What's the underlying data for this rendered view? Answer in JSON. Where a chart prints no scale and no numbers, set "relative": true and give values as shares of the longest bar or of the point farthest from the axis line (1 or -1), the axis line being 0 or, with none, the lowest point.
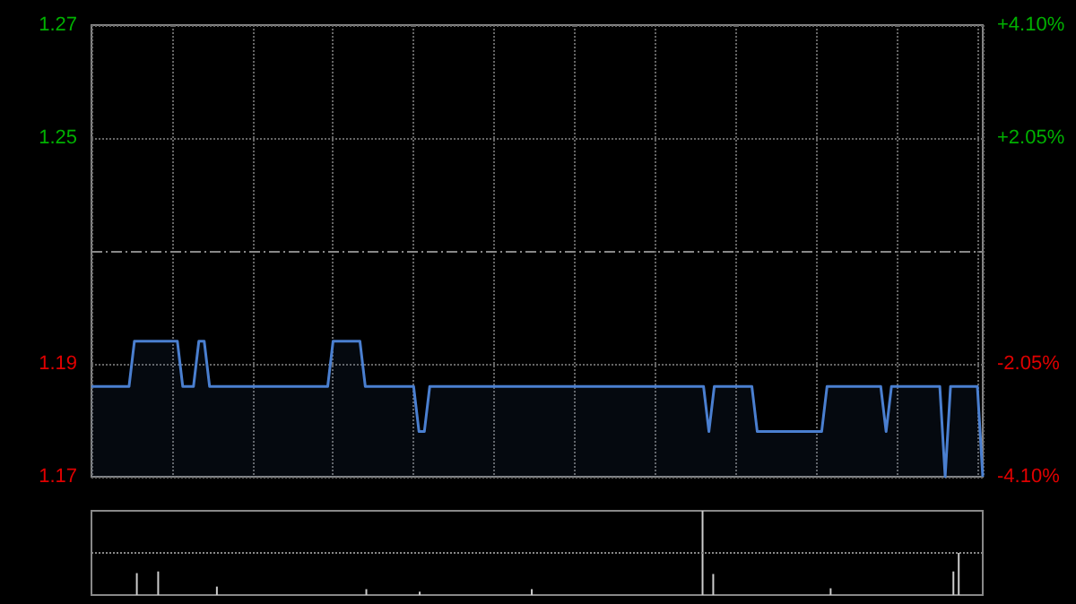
{
  "chart_data": [
    {
      "type": "area",
      "categories": [
        null,
        null,
        null,
        null,
        null,
        null,
        null,
        null,
        null,
        null,
        null,
        null,
        null,
        null,
        null,
        null,
        null,
        null,
        null,
        null,
        null,
        null,
        null,
        null,
        null,
        null,
        null,
        null,
        null,
        null,
        null,
        null,
        null,
        null,
        null,
        null,
        null,
        null,
        null,
        null,
        null,
        null,
        null,
        null,
        null,
        null,
        null,
        null,
        null,
        null,
        null,
        null,
        null,
        null,
        null,
        null,
        null,
        null,
        null,
        null,
        null,
        null,
        null,
        null,
        null,
        null,
        null,
        null,
        null,
        null,
        null,
        null,
        null,
        null,
        null,
        null,
        null,
        null,
        null,
        null,
        null,
        null,
        null,
        null,
        null,
        null,
        null,
        null,
        null,
        null,
        null,
        null,
        null,
        null,
        null,
        null,
        null,
        null,
        null,
        null,
        null,
        null,
        null,
        null,
        null,
        null,
        null,
        null,
        null,
        null,
        null,
        null,
        null,
        null,
        null,
        null,
        null,
        null,
        null,
        null,
        null,
        null,
        null,
        null,
        null,
        null,
        null,
        null,
        null,
        null,
        null,
        null,
        null,
        null,
        null,
        null,
        null,
        null,
        null,
        null,
        null,
        null,
        null,
        null,
        null,
        null,
        null,
        null,
        null,
        null,
        null,
        null,
        null,
        null,
        null,
        null,
        null,
        null,
        null,
        null,
        null,
        null,
        null,
        null,
        null,
        null,
        null
      ],
      "series": [
        {
          "color": "#4a7fd0",
          "values": [
            1.19,
            1.19,
            1.19,
            1.19,
            1.19,
            1.19,
            1.19,
            1.19,
            1.2,
            1.2,
            1.2,
            1.2,
            1.2,
            1.2,
            1.2,
            1.2,
            1.2,
            1.19,
            1.19,
            1.19,
            1.2,
            1.2,
            1.19,
            1.19,
            1.19,
            1.19,
            1.19,
            1.19,
            1.19,
            1.19,
            1.19,
            1.19,
            1.19,
            1.19,
            1.19,
            1.19,
            1.19,
            1.19,
            1.19,
            1.19,
            1.19,
            1.19,
            1.19,
            1.19,
            1.19,
            1.2,
            1.2,
            1.2,
            1.2,
            1.2,
            1.2,
            1.19,
            1.19,
            1.19,
            1.19,
            1.19,
            1.19,
            1.19,
            1.19,
            1.19,
            1.19,
            1.18,
            1.18,
            1.19,
            1.19,
            1.19,
            1.19,
            1.19,
            1.19,
            1.19,
            1.19,
            1.19,
            1.19,
            1.19,
            1.19,
            1.19,
            1.19,
            1.19,
            1.19,
            1.19,
            1.19,
            1.19,
            1.19,
            1.19,
            1.19,
            1.19,
            1.19,
            1.19,
            1.19,
            1.19,
            1.19,
            1.19,
            1.19,
            1.19,
            1.19,
            1.19,
            1.19,
            1.19,
            1.19,
            1.19,
            1.19,
            1.19,
            1.19,
            1.19,
            1.19,
            1.19,
            1.19,
            1.19,
            1.19,
            1.19,
            1.19,
            1.19,
            1.19,
            1.19,
            1.19,
            1.18,
            1.19,
            1.19,
            1.19,
            1.19,
            1.19,
            1.19,
            1.19,
            1.19,
            1.18,
            1.18,
            1.18,
            1.18,
            1.18,
            1.18,
            1.18,
            1.18,
            1.18,
            1.18,
            1.18,
            1.18,
            1.18,
            1.19,
            1.19,
            1.19,
            1.19,
            1.19,
            1.19,
            1.19,
            1.19,
            1.19,
            1.19,
            1.19,
            1.18,
            1.19,
            1.19,
            1.19,
            1.19,
            1.19,
            1.19,
            1.19,
            1.19,
            1.19,
            1.19,
            1.17,
            1.19,
            1.19,
            1.19,
            1.19,
            1.19,
            1.19,
            1.17
          ]
        }
      ],
      "ylim": [
        1.17,
        1.27
      ],
      "yticks": [
        1.17,
        {
          "value": 1.195,
          "label": "1.19"
        },
        {
          "value": 1.245,
          "label": "1.25"
        },
        1.27
      ],
      "y2lim": [
        -4.1,
        4.1
      ],
      "y2ticks": [
        {
          "value": -4.1,
          "label": "-4.10%"
        },
        {
          "value": -2.05,
          "label": "-2.05%"
        },
        {
          "value": 2.05,
          "label": "+2.05%"
        },
        {
          "value": 4.1,
          "label": "+4.10%"
        }
      ],
      "ref_lines": [
        {
          "axis": "y",
          "value": 1.22,
          "line_style": "dashed"
        }
      ],
      "grid": true,
      "tick_labels": "y"
    },
    {
      "type": "bar",
      "relative": true,
      "tick_labels": false,
      "ref_lines": [
        {
          "axis": "y",
          "value": 0.5,
          "line_style": "dotted"
        }
      ],
      "categories": [
        null,
        null,
        null,
        null,
        null,
        null,
        null,
        null,
        null,
        null,
        null,
        null,
        null,
        null,
        null,
        null,
        null,
        null,
        null,
        null,
        null,
        null,
        null,
        null,
        null,
        null,
        null,
        null,
        null,
        null,
        null,
        null,
        null,
        null,
        null,
        null,
        null,
        null,
        null,
        null,
        null,
        null,
        null,
        null,
        null,
        null,
        null,
        null,
        null,
        null,
        null,
        null,
        null,
        null,
        null,
        null,
        null,
        null,
        null,
        null,
        null,
        null,
        null,
        null,
        null,
        null,
        null,
        null,
        null,
        null,
        null,
        null,
        null,
        null,
        null,
        null,
        null,
        null,
        null,
        null,
        null,
        null,
        null,
        null,
        null,
        null,
        null,
        null,
        null,
        null,
        null,
        null,
        null,
        null,
        null,
        null,
        null,
        null,
        null,
        null,
        null,
        null,
        null,
        null,
        null,
        null,
        null,
        null,
        null,
        null,
        null,
        null,
        null,
        null,
        null,
        null,
        null,
        null,
        null,
        null,
        null,
        null,
        null,
        null,
        null,
        null,
        null,
        null,
        null,
        null,
        null,
        null,
        null,
        null,
        null,
        null,
        null,
        null,
        null,
        null,
        null,
        null,
        null,
        null,
        null,
        null,
        null,
        null,
        null,
        null,
        null,
        null,
        null,
        null,
        null,
        null,
        null,
        null,
        null,
        null,
        null,
        null,
        null,
        null,
        null,
        null,
        null
      ],
      "series": [
        {
          "color": "#cccccc",
          "values": [
            0,
            0,
            0,
            0,
            0,
            0,
            0,
            0,
            0.26,
            0,
            0,
            0,
            0.28,
            0,
            0,
            0,
            0,
            0,
            0,
            0,
            0,
            0,
            0,
            0.1,
            0,
            0,
            0,
            0,
            0,
            0,
            0,
            0,
            0,
            0,
            0,
            0,
            0,
            0,
            0,
            0,
            0,
            0,
            0,
            0,
            0,
            0,
            0,
            0,
            0,
            0,
            0,
            0.07,
            0,
            0,
            0,
            0,
            0,
            0,
            0,
            0,
            0,
            0.04,
            0,
            0,
            0,
            0,
            0,
            0,
            0,
            0,
            0,
            0,
            0,
            0,
            0,
            0,
            0,
            0,
            0,
            0,
            0,
            0,
            0.07,
            0,
            0,
            0,
            0,
            0,
            0,
            0,
            0,
            0,
            0,
            0,
            0,
            0,
            0,
            0,
            0,
            0,
            0,
            0,
            0,
            0,
            0,
            0,
            0,
            0,
            0,
            0,
            0,
            0,
            0,
            0,
            1,
            0,
            0.25,
            0,
            0,
            0,
            0,
            0,
            0,
            0,
            0,
            0,
            0,
            0,
            0,
            0,
            0,
            0,
            0,
            0,
            0,
            0,
            0,
            0,
            0.08,
            0,
            0,
            0,
            0,
            0,
            0,
            0,
            0,
            0,
            0,
            0,
            0,
            0,
            0,
            0,
            0,
            0,
            0,
            0,
            0,
            0,
            0,
            0.28,
            0.5,
            0,
            0,
            0,
            0
          ]
        }
      ]
    }
  ]
}
